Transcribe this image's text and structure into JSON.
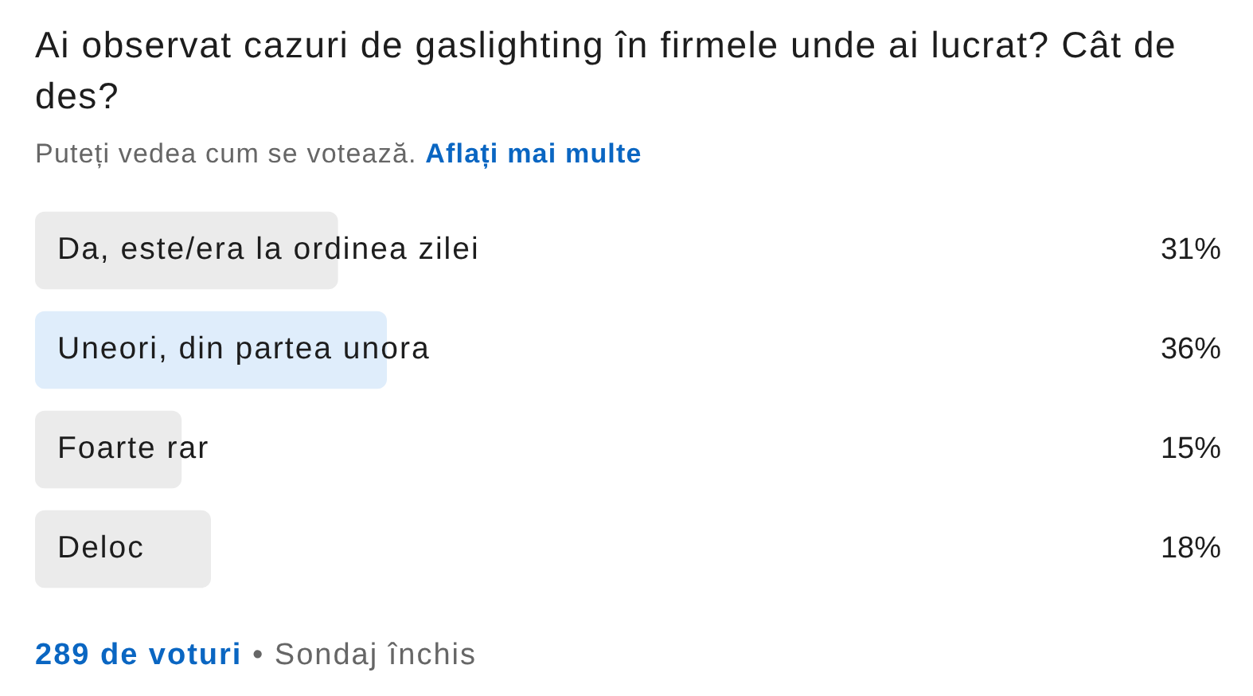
{
  "chart_data": {
    "type": "bar",
    "orientation": "horizontal",
    "title": "Ai observat cazuri de gaslighting în firmele unde ai lucrat? Cât de des?",
    "subtitle": "Puteți vedea cum se votează. Aflați mai multe",
    "categories": [
      "Da, este/era la ordinea zilei",
      "Uneori, din partea unora",
      "Foarte rar",
      "Deloc"
    ],
    "values": [
      31,
      36,
      15,
      18
    ],
    "value_labels": [
      "31%",
      "36%",
      "15%",
      "18%"
    ],
    "colors": [
      "#ebebeb",
      "#dfedfb",
      "#ebebeb",
      "#ebebeb"
    ],
    "annotations": [
      "289 de voturi",
      "• Sondaj închis"
    ]
  }
}
